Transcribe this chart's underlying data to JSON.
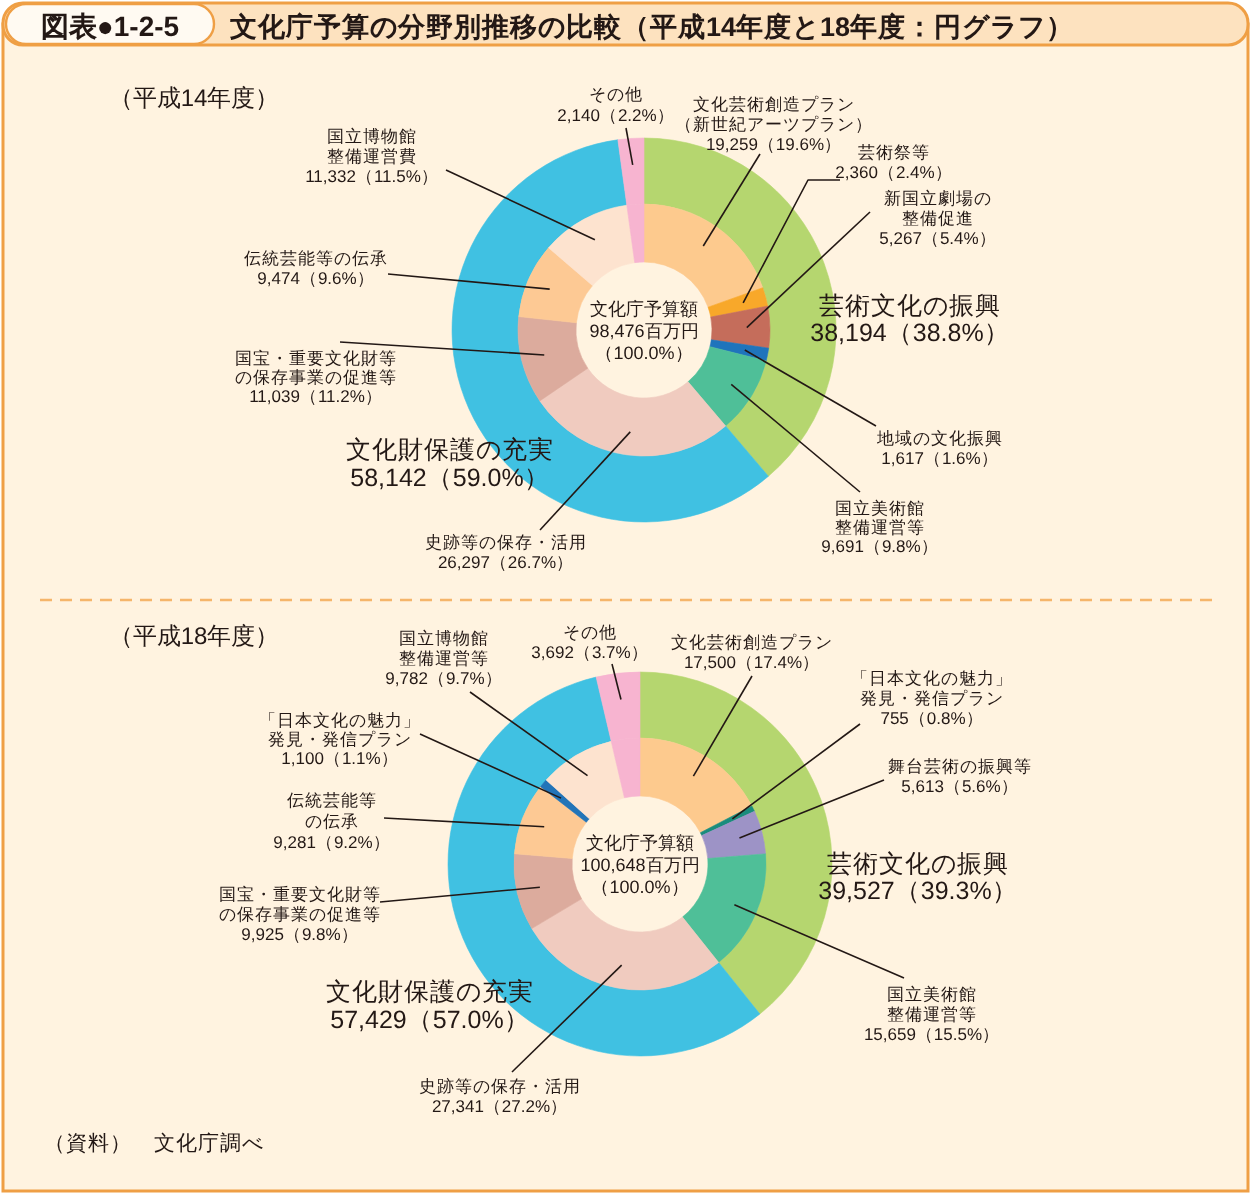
{
  "chart_data": [
    {
      "type": "donut",
      "title": "文化庁予算の分野別推移の比較（平成14年度と18年度：円グラフ）",
      "subtitle": "（平成14年度）",
      "annotations": [
        "図表●1-2-5"
      ],
      "categories": [
        "芸術文化の振興",
        "文化財保護の充実",
        "その他"
      ],
      "values": [
        38194,
        58142,
        2140
      ],
      "colors": [
        "#b5d66f",
        "#40c1e2",
        "#f7b4d0"
      ],
      "value_labels": [
        "38,194（38.8%）",
        "58,142（59.0%）",
        "2,140（2.2%）"
      ]
    },
    {
      "type": "donut",
      "annotations": [
        "文化庁予算額98,476百万円（100.0%）"
      ],
      "categories": [
        "文化芸術創造プラン（新世紀アーツプラン）",
        "芸術祭等",
        "新国立劇場の整備促進",
        "地域の文化振興",
        "国立美術館整備運営等",
        "史跡等の保存・活用",
        "国宝・重要文化財等の保存事業の促進等",
        "伝統芸能等の伝承",
        "国立博物館整備運営費",
        null
      ],
      "values": [
        19259,
        2360,
        5267,
        1617,
        9691,
        26297,
        11039,
        9474,
        11332,
        2140
      ],
      "colors": [
        "#fdca8e",
        "#f8a82a",
        "#c56d5b",
        "#1f74bc",
        "#4fbf98",
        "#f0cbbf",
        "#dcab9d",
        "#fdc994",
        "#fde3cf",
        "#f7b4d0"
      ],
      "value_labels": [
        "19,259（19.6%）",
        "2,360（2.4%）",
        "5,267（5.4%）",
        "1,617（1.6%）",
        "9,691（9.8%）",
        "26,297（26.7%）",
        "11,039（11.2%）",
        "9,474（9.6%）",
        "11,332（11.5%）",
        null
      ]
    },
    {
      "type": "donut",
      "subtitle": "（平成18年度）",
      "categories": [
        "芸術文化の振興",
        "文化財保護の充実",
        "その他"
      ],
      "values": [
        39527,
        57429,
        3692
      ],
      "colors": [
        "#b5d66f",
        "#40c1e2",
        "#f7b4d0"
      ],
      "value_labels": [
        "39,527（39.3%）",
        "57,429（57.0%）",
        "3,692（3.7%）"
      ]
    },
    {
      "type": "donut",
      "annotations": [
        "文化庁予算額100,648百万円（100.0%）",
        "（資料）　文化庁調べ"
      ],
      "categories": [
        "文化芸術創造プラン",
        "「日本文化の魅力」発見・発信プラン",
        "舞台芸術の振興等",
        "国立美術館整備運営等",
        "史跡等の保存・活用",
        "国宝・重要文化財等の保存事業の促進等",
        "伝統芸能等の伝承",
        "「日本文化の魅力」発見・発信プラン",
        "国立博物館整備運営等",
        null
      ],
      "values": [
        17500,
        755,
        5613,
        15659,
        27341,
        9925,
        9281,
        1100,
        9782,
        3692
      ],
      "colors": [
        "#fdca8e",
        "#1a8c7c",
        "#9d93c6",
        "#4fbf98",
        "#f0cbbf",
        "#dcab9d",
        "#fdc994",
        "#2274b8",
        "#fde3cf",
        "#f7b4d0"
      ],
      "value_labels": [
        "17,500（17.4%）",
        "755（0.8%）",
        "5,613（5.6%）",
        "15,659（15.5%）",
        "27,341（27.2%）",
        "9,925（9.8%）",
        "9,281（9.2%）",
        "1,100（1.1%）",
        "9,782（9.7%）",
        null
      ]
    }
  ]
}
